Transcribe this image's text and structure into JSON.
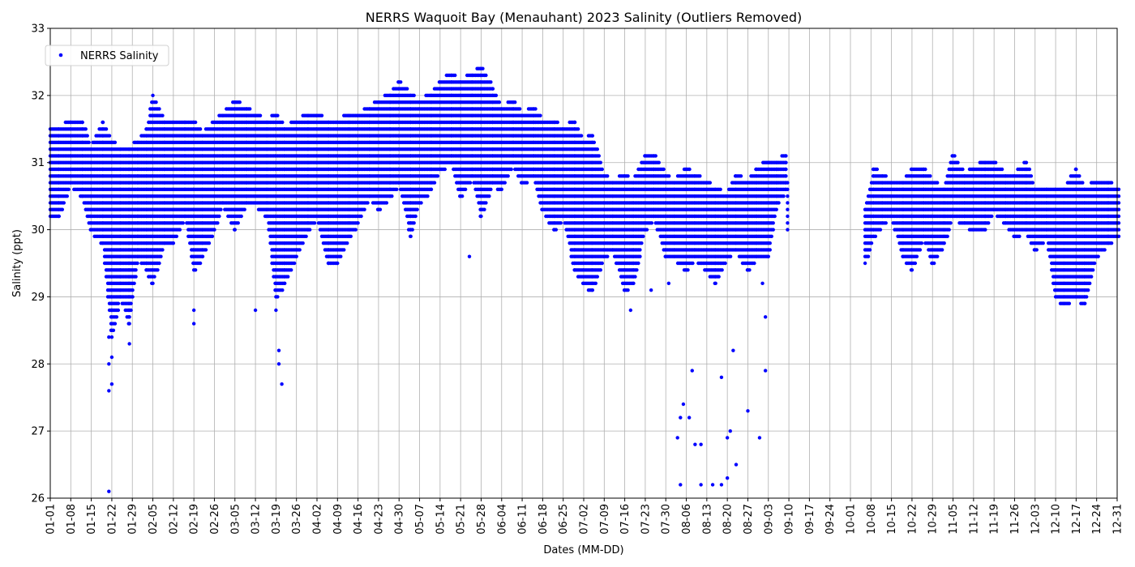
{
  "chart_data": {
    "type": "scatter",
    "title": "NERRS Waquoit Bay (Menauhant) 2023 Salinity (Outliers Removed)",
    "xlabel": "Dates (MM-DD)",
    "ylabel": "Salinity (ppt)",
    "ylim": [
      26,
      33
    ],
    "xlim": [
      "2023-01-01",
      "2023-12-31"
    ],
    "yticks": [
      26,
      27,
      28,
      29,
      30,
      31,
      32,
      33
    ],
    "xtick_labels": [
      "01-01",
      "01-08",
      "01-15",
      "01-22",
      "01-29",
      "02-05",
      "02-12",
      "02-19",
      "02-26",
      "03-05",
      "03-12",
      "03-19",
      "03-26",
      "04-02",
      "04-09",
      "04-16",
      "04-23",
      "04-30",
      "05-07",
      "05-14",
      "05-21",
      "05-28",
      "06-04",
      "06-11",
      "06-18",
      "06-25",
      "07-02",
      "07-09",
      "07-16",
      "07-23",
      "07-30",
      "08-06",
      "08-13",
      "08-20",
      "08-27",
      "09-03",
      "09-10",
      "09-17",
      "09-24",
      "10-01",
      "10-08",
      "10-15",
      "10-22",
      "10-29",
      "11-05",
      "11-12",
      "11-19",
      "11-26",
      "12-03",
      "12-10",
      "12-17",
      "12-24",
      "12-31"
    ],
    "grid": true,
    "legend_position": "top-left",
    "series": [
      {
        "name": "NERRS Salinity",
        "color": "#0000ff",
        "marker": "circle",
        "envelope": [
          {
            "date": "2023-01-01",
            "low": 30.2,
            "high": 31.5
          },
          {
            "date": "2023-01-04",
            "low": 30.2,
            "high": 31.5
          },
          {
            "date": "2023-01-08",
            "low": 30.7,
            "high": 31.6
          },
          {
            "date": "2023-01-12",
            "low": 30.5,
            "high": 31.6
          },
          {
            "date": "2023-01-15",
            "low": 30.0,
            "high": 31.2
          },
          {
            "date": "2023-01-19",
            "low": 29.8,
            "high": 31.6
          },
          {
            "date": "2023-01-22",
            "low": 28.4,
            "high": 31.3
          },
          {
            "date": "2023-01-25",
            "low": 29.0,
            "high": 31.2
          },
          {
            "date": "2023-01-28",
            "low": 28.6,
            "high": 31.2
          },
          {
            "date": "2023-01-31",
            "low": 29.6,
            "high": 31.3
          },
          {
            "date": "2023-02-03",
            "low": 29.4,
            "high": 31.5
          },
          {
            "date": "2023-02-05",
            "low": 29.2,
            "high": 32.0
          },
          {
            "date": "2023-02-09",
            "low": 29.8,
            "high": 31.6
          },
          {
            "date": "2023-02-12",
            "low": 29.8,
            "high": 31.6
          },
          {
            "date": "2023-02-16",
            "low": 30.2,
            "high": 31.6
          },
          {
            "date": "2023-02-19",
            "low": 29.4,
            "high": 31.6
          },
          {
            "date": "2023-02-22",
            "low": 29.6,
            "high": 31.4
          },
          {
            "date": "2023-02-26",
            "low": 30.0,
            "high": 31.6
          },
          {
            "date": "2023-03-01",
            "low": 30.4,
            "high": 31.7
          },
          {
            "date": "2023-03-05",
            "low": 30.0,
            "high": 31.9
          },
          {
            "date": "2023-03-09",
            "low": 30.4,
            "high": 31.8
          },
          {
            "date": "2023-03-12",
            "low": 30.4,
            "high": 31.7
          },
          {
            "date": "2023-03-16",
            "low": 30.2,
            "high": 31.6
          },
          {
            "date": "2023-03-19",
            "low": 29.0,
            "high": 31.7
          },
          {
            "date": "2023-03-22",
            "low": 29.2,
            "high": 31.5
          },
          {
            "date": "2023-03-26",
            "low": 29.6,
            "high": 31.6
          },
          {
            "date": "2023-03-30",
            "low": 30.0,
            "high": 31.7
          },
          {
            "date": "2023-04-02",
            "low": 30.2,
            "high": 31.7
          },
          {
            "date": "2023-04-06",
            "low": 29.5,
            "high": 31.6
          },
          {
            "date": "2023-04-09",
            "low": 29.5,
            "high": 31.6
          },
          {
            "date": "2023-04-13",
            "low": 29.9,
            "high": 31.7
          },
          {
            "date": "2023-04-16",
            "low": 30.1,
            "high": 31.7
          },
          {
            "date": "2023-04-20",
            "low": 30.5,
            "high": 31.8
          },
          {
            "date": "2023-04-23",
            "low": 30.3,
            "high": 31.9
          },
          {
            "date": "2023-04-27",
            "low": 30.5,
            "high": 32.0
          },
          {
            "date": "2023-04-30",
            "low": 30.7,
            "high": 32.2
          },
          {
            "date": "2023-05-04",
            "low": 29.9,
            "high": 32.0
          },
          {
            "date": "2023-05-07",
            "low": 30.4,
            "high": 31.9
          },
          {
            "date": "2023-05-11",
            "low": 30.6,
            "high": 32.0
          },
          {
            "date": "2023-05-14",
            "low": 30.9,
            "high": 32.2
          },
          {
            "date": "2023-05-18",
            "low": 31.0,
            "high": 32.3
          },
          {
            "date": "2023-05-21",
            "low": 30.5,
            "high": 32.2
          },
          {
            "date": "2023-05-25",
            "low": 30.8,
            "high": 32.3
          },
          {
            "date": "2023-05-28",
            "low": 30.2,
            "high": 32.4
          },
          {
            "date": "2023-06-01",
            "low": 30.7,
            "high": 32.1
          },
          {
            "date": "2023-06-04",
            "low": 30.6,
            "high": 31.8
          },
          {
            "date": "2023-06-08",
            "low": 31.0,
            "high": 31.9
          },
          {
            "date": "2023-06-11",
            "low": 30.7,
            "high": 31.7
          },
          {
            "date": "2023-06-15",
            "low": 30.8,
            "high": 31.8
          },
          {
            "date": "2023-06-18",
            "low": 30.3,
            "high": 31.6
          },
          {
            "date": "2023-06-22",
            "low": 30.0,
            "high": 31.6
          },
          {
            "date": "2023-06-25",
            "low": 30.2,
            "high": 31.5
          },
          {
            "date": "2023-06-29",
            "low": 29.4,
            "high": 31.6
          },
          {
            "date": "2023-07-02",
            "low": 29.2,
            "high": 31.3
          },
          {
            "date": "2023-07-05",
            "low": 29.1,
            "high": 31.4
          },
          {
            "date": "2023-07-09",
            "low": 29.6,
            "high": 30.8
          },
          {
            "date": "2023-07-12",
            "low": 29.7,
            "high": 30.7
          },
          {
            "date": "2023-07-16",
            "low": 29.1,
            "high": 30.8
          },
          {
            "date": "2023-07-19",
            "low": 29.2,
            "high": 30.7
          },
          {
            "date": "2023-07-23",
            "low": 30.0,
            "high": 31.1
          },
          {
            "date": "2023-07-26",
            "low": 30.2,
            "high": 31.1
          },
          {
            "date": "2023-07-30",
            "low": 29.6,
            "high": 30.8
          },
          {
            "date": "2023-08-02",
            "low": 29.6,
            "high": 30.7
          },
          {
            "date": "2023-08-06",
            "low": 29.4,
            "high": 30.9
          },
          {
            "date": "2023-08-09",
            "low": 29.6,
            "high": 30.8
          },
          {
            "date": "2023-08-13",
            "low": 29.4,
            "high": 30.7
          },
          {
            "date": "2023-08-16",
            "low": 29.2,
            "high": 30.6
          },
          {
            "date": "2023-08-20",
            "low": 29.6,
            "high": 30.5
          },
          {
            "date": "2023-08-23",
            "low": 29.7,
            "high": 30.8
          },
          {
            "date": "2023-08-27",
            "low": 29.4,
            "high": 30.7
          },
          {
            "date": "2023-08-30",
            "low": 29.6,
            "high": 30.9
          },
          {
            "date": "2023-09-03",
            "low": 29.6,
            "high": 31.0
          },
          {
            "date": "2023-09-06",
            "low": 30.4,
            "high": 31.0
          },
          {
            "date": "2023-09-09",
            "low": 30.6,
            "high": 31.1
          },
          {
            "date": "2023-10-06",
            "low": 29.5,
            "high": 30.3
          },
          {
            "date": "2023-10-09",
            "low": 29.9,
            "high": 30.9
          },
          {
            "date": "2023-10-12",
            "low": 30.1,
            "high": 30.8
          },
          {
            "date": "2023-10-15",
            "low": 30.2,
            "high": 30.7
          },
          {
            "date": "2023-10-19",
            "low": 29.6,
            "high": 30.7
          },
          {
            "date": "2023-10-22",
            "low": 29.4,
            "high": 30.9
          },
          {
            "date": "2023-10-26",
            "low": 29.9,
            "high": 30.9
          },
          {
            "date": "2023-10-29",
            "low": 29.5,
            "high": 30.7
          },
          {
            "date": "2023-11-02",
            "low": 29.8,
            "high": 30.6
          },
          {
            "date": "2023-11-05",
            "low": 30.2,
            "high": 31.1
          },
          {
            "date": "2023-11-09",
            "low": 30.1,
            "high": 30.8
          },
          {
            "date": "2023-11-12",
            "low": 30.0,
            "high": 30.9
          },
          {
            "date": "2023-11-16",
            "low": 30.0,
            "high": 31.0
          },
          {
            "date": "2023-11-19",
            "low": 30.3,
            "high": 31.0
          },
          {
            "date": "2023-11-23",
            "low": 30.1,
            "high": 30.8
          },
          {
            "date": "2023-11-26",
            "low": 29.9,
            "high": 30.8
          },
          {
            "date": "2023-11-30",
            "low": 30.0,
            "high": 31.0
          },
          {
            "date": "2023-12-03",
            "low": 29.7,
            "high": 30.6
          },
          {
            "date": "2023-12-07",
            "low": 29.9,
            "high": 30.6
          },
          {
            "date": "2023-12-10",
            "low": 29.0,
            "high": 30.6
          },
          {
            "date": "2023-12-13",
            "low": 28.9,
            "high": 30.6
          },
          {
            "date": "2023-12-17",
            "low": 29.0,
            "high": 30.9
          },
          {
            "date": "2023-12-20",
            "low": 28.9,
            "high": 30.6
          },
          {
            "date": "2023-12-24",
            "low": 29.6,
            "high": 30.7
          },
          {
            "date": "2023-12-28",
            "low": 29.8,
            "high": 30.7
          },
          {
            "date": "2023-12-31",
            "low": 29.9,
            "high": 30.6
          }
        ],
        "extra_points": [
          {
            "date": "2023-01-21",
            "value": 26.1
          },
          {
            "date": "2023-01-21",
            "value": 27.6
          },
          {
            "date": "2023-01-22",
            "value": 27.7
          },
          {
            "date": "2023-01-21",
            "value": 28.0
          },
          {
            "date": "2023-01-22",
            "value": 28.1
          },
          {
            "date": "2023-01-21",
            "value": 28.4
          },
          {
            "date": "2023-01-22",
            "value": 28.8
          },
          {
            "date": "2023-01-28",
            "value": 28.3
          },
          {
            "date": "2023-02-19",
            "value": 28.6
          },
          {
            "date": "2023-02-19",
            "value": 28.8
          },
          {
            "date": "2023-03-12",
            "value": 28.8
          },
          {
            "date": "2023-03-19",
            "value": 28.8
          },
          {
            "date": "2023-03-20",
            "value": 28.2
          },
          {
            "date": "2023-03-20",
            "value": 28.0
          },
          {
            "date": "2023-03-21",
            "value": 27.7
          },
          {
            "date": "2023-05-24",
            "value": 29.6
          },
          {
            "date": "2023-07-18",
            "value": 28.8
          },
          {
            "date": "2023-07-25",
            "value": 29.1
          },
          {
            "date": "2023-07-31",
            "value": 29.2
          },
          {
            "date": "2023-08-03",
            "value": 26.9
          },
          {
            "date": "2023-08-04",
            "value": 27.2
          },
          {
            "date": "2023-08-04",
            "value": 26.2
          },
          {
            "date": "2023-08-05",
            "value": 27.4
          },
          {
            "date": "2023-08-07",
            "value": 27.2
          },
          {
            "date": "2023-08-08",
            "value": 27.9
          },
          {
            "date": "2023-08-09",
            "value": 26.8
          },
          {
            "date": "2023-08-11",
            "value": 26.8
          },
          {
            "date": "2023-08-11",
            "value": 26.2
          },
          {
            "date": "2023-08-15",
            "value": 26.2
          },
          {
            "date": "2023-08-18",
            "value": 26.2
          },
          {
            "date": "2023-08-18",
            "value": 27.8
          },
          {
            "date": "2023-08-20",
            "value": 26.3
          },
          {
            "date": "2023-08-20",
            "value": 26.9
          },
          {
            "date": "2023-08-21",
            "value": 27.0
          },
          {
            "date": "2023-08-22",
            "value": 28.2
          },
          {
            "date": "2023-08-23",
            "value": 26.5
          },
          {
            "date": "2023-08-27",
            "value": 27.3
          },
          {
            "date": "2023-08-31",
            "value": 26.9
          },
          {
            "date": "2023-09-01",
            "value": 29.2
          },
          {
            "date": "2023-09-02",
            "value": 27.9
          },
          {
            "date": "2023-09-02",
            "value": 28.7
          }
        ]
      }
    ]
  }
}
